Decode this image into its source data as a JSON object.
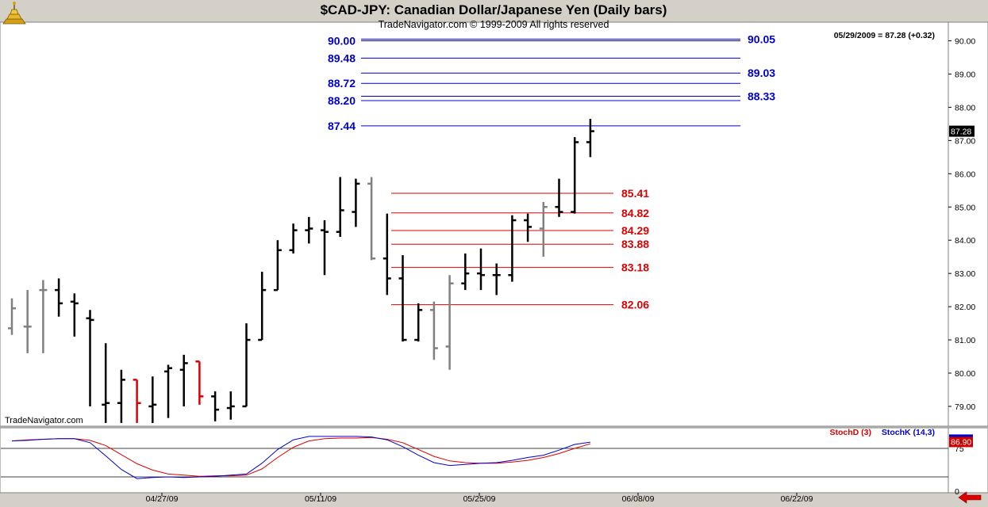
{
  "header": {
    "title": "$CAD-JPY:  Canadian Dollar/Japanese Yen  (Daily bars)",
    "copyright": "TradeNavigator.com © 1999-2009 All rights reserved",
    "watermark": "TradeNavigator.com",
    "last_quote": "05/29/2009 = 87.28 (+0.32)"
  },
  "icons": {
    "logo": "trading-pit-logo-icon",
    "scroll_left": "red-left-arrow-icon"
  },
  "colors": {
    "background": "#ffffff",
    "frame": "#d4d0c8",
    "up_bar": "#000000",
    "gray_bar": "#808080",
    "red_bar": "#dd0000",
    "resistance": "#0000cc",
    "support": "#dd0000",
    "stoch_d": "#dd0000",
    "stoch_k": "#0000cc"
  },
  "chart_data": [
    {
      "type": "ohlc",
      "title": "$CAD-JPY:  Canadian Dollar/Japanese Yen  (Daily bars)",
      "ylim": [
        78.5,
        90.5
      ],
      "y_ticks": [
        "90.00",
        "89.00",
        "88.00",
        "87.00",
        "86.00",
        "85.00",
        "84.00",
        "83.00",
        "82.00",
        "81.00",
        "80.00",
        "79.00"
      ],
      "x_ticks": [
        "04/27/09",
        "05/11/09",
        "05/25/09",
        "06/08/09",
        "06/22/09"
      ],
      "last_price_label": "87.28",
      "bars": [
        {
          "o": 81.35,
          "h": 82.25,
          "l": 81.15,
          "c": 81.95,
          "color": "gray"
        },
        {
          "o": 81.4,
          "h": 82.5,
          "l": 80.6,
          "c": 81.4,
          "color": "gray"
        },
        {
          "o": 82.5,
          "h": 82.8,
          "l": 80.6,
          "c": 82.5,
          "color": "gray"
        },
        {
          "o": 82.5,
          "h": 82.85,
          "l": 81.7,
          "c": 82.1,
          "color": "black"
        },
        {
          "o": 82.15,
          "h": 82.4,
          "l": 81.1,
          "c": 82.1,
          "color": "black"
        },
        {
          "o": 81.65,
          "h": 81.9,
          "l": 79.0,
          "c": 81.6,
          "color": "black"
        },
        {
          "o": 79.05,
          "h": 80.9,
          "l": 78.5,
          "c": 79.1,
          "color": "black"
        },
        {
          "o": 79.1,
          "h": 80.1,
          "l": 78.5,
          "c": 79.8,
          "color": "black"
        },
        {
          "o": 79.8,
          "h": 79.8,
          "l": 78.5,
          "c": 79.1,
          "color": "red"
        },
        {
          "o": 79.0,
          "h": 79.9,
          "l": 78.5,
          "c": 79.05,
          "color": "black"
        },
        {
          "o": 80.05,
          "h": 80.25,
          "l": 78.65,
          "c": 80.15,
          "color": "black"
        },
        {
          "o": 80.1,
          "h": 80.55,
          "l": 79.0,
          "c": 80.3,
          "color": "black"
        },
        {
          "o": 80.35,
          "h": 80.35,
          "l": 79.05,
          "c": 79.3,
          "color": "red"
        },
        {
          "o": 79.3,
          "h": 79.45,
          "l": 78.55,
          "c": 78.9,
          "color": "black"
        },
        {
          "o": 78.95,
          "h": 79.45,
          "l": 78.6,
          "c": 79.0,
          "color": "black"
        },
        {
          "o": 79.0,
          "h": 81.5,
          "l": 79.0,
          "c": 81.0,
          "color": "black"
        },
        {
          "o": 81.0,
          "h": 83.05,
          "l": 81.0,
          "c": 82.5,
          "color": "black"
        },
        {
          "o": 82.5,
          "h": 84.0,
          "l": 82.5,
          "c": 83.7,
          "color": "black"
        },
        {
          "o": 83.7,
          "h": 84.5,
          "l": 83.6,
          "c": 84.3,
          "color": "black"
        },
        {
          "o": 84.3,
          "h": 84.7,
          "l": 83.9,
          "c": 84.35,
          "color": "black"
        },
        {
          "o": 84.3,
          "h": 84.6,
          "l": 82.95,
          "c": 84.25,
          "color": "black"
        },
        {
          "o": 84.25,
          "h": 85.9,
          "l": 84.1,
          "c": 84.9,
          "color": "black"
        },
        {
          "o": 84.85,
          "h": 85.85,
          "l": 84.4,
          "c": 85.7,
          "color": "black"
        },
        {
          "o": 85.7,
          "h": 85.9,
          "l": 83.4,
          "c": 83.45,
          "color": "gray"
        },
        {
          "o": 83.45,
          "h": 84.8,
          "l": 82.35,
          "c": 82.85,
          "color": "black"
        },
        {
          "o": 82.85,
          "h": 83.55,
          "l": 80.95,
          "c": 81.0,
          "color": "black"
        },
        {
          "o": 81.0,
          "h": 82.1,
          "l": 80.95,
          "c": 81.9,
          "color": "black"
        },
        {
          "o": 81.9,
          "h": 82.15,
          "l": 80.4,
          "c": 80.75,
          "color": "gray"
        },
        {
          "o": 80.8,
          "h": 82.95,
          "l": 80.1,
          "c": 82.7,
          "color": "gray"
        },
        {
          "o": 82.7,
          "h": 83.6,
          "l": 82.5,
          "c": 83.0,
          "color": "black"
        },
        {
          "o": 83.0,
          "h": 83.75,
          "l": 82.5,
          "c": 82.95,
          "color": "black"
        },
        {
          "o": 82.95,
          "h": 83.3,
          "l": 82.35,
          "c": 82.95,
          "color": "black"
        },
        {
          "o": 82.95,
          "h": 84.75,
          "l": 82.75,
          "c": 84.6,
          "color": "black"
        },
        {
          "o": 84.6,
          "h": 84.8,
          "l": 83.95,
          "c": 84.4,
          "color": "black"
        },
        {
          "o": 84.35,
          "h": 85.15,
          "l": 83.5,
          "c": 85.0,
          "color": "gray"
        },
        {
          "o": 85.0,
          "h": 85.85,
          "l": 84.7,
          "c": 84.85,
          "color": "black"
        },
        {
          "o": 84.85,
          "h": 87.1,
          "l": 84.8,
          "c": 86.95,
          "color": "black"
        },
        {
          "o": 86.95,
          "h": 87.65,
          "l": 86.5,
          "c": 87.28,
          "color": "black"
        }
      ],
      "resistance_levels": [
        "90.00",
        "89.48",
        "88.72",
        "88.20",
        "87.44"
      ],
      "resistance_levels_right": [
        "90.05",
        "89.03",
        "88.33"
      ],
      "support_levels": [
        "85.41",
        "84.82",
        "84.29",
        "83.88",
        "83.18",
        "82.06"
      ]
    },
    {
      "type": "line",
      "title": "",
      "ylim": [
        0,
        100
      ],
      "y_ticks": [
        "75",
        "0"
      ],
      "guide_lines": [
        75,
        25
      ],
      "last_value_label": "86.90",
      "series": [
        {
          "name": "StochD (3)",
          "values": [
            88,
            90,
            91,
            92,
            92,
            89,
            80,
            64,
            48,
            37,
            30,
            28,
            26,
            27,
            27,
            28,
            39,
            59,
            77,
            88,
            92,
            93,
            93,
            94,
            91,
            85,
            73,
            61,
            53,
            50,
            49,
            49,
            51,
            54,
            59,
            66,
            75,
            83
          ]
        },
        {
          "name": "StochK (14,3)",
          "values": [
            88,
            89,
            91,
            92,
            92,
            85,
            62,
            38,
            22,
            24,
            25,
            24,
            25,
            26,
            28,
            30,
            49,
            73,
            90,
            96,
            96,
            96,
            96,
            95,
            90,
            78,
            63,
            50,
            45,
            47,
            49,
            50,
            54,
            59,
            63,
            72,
            82,
            86
          ]
        }
      ]
    }
  ]
}
